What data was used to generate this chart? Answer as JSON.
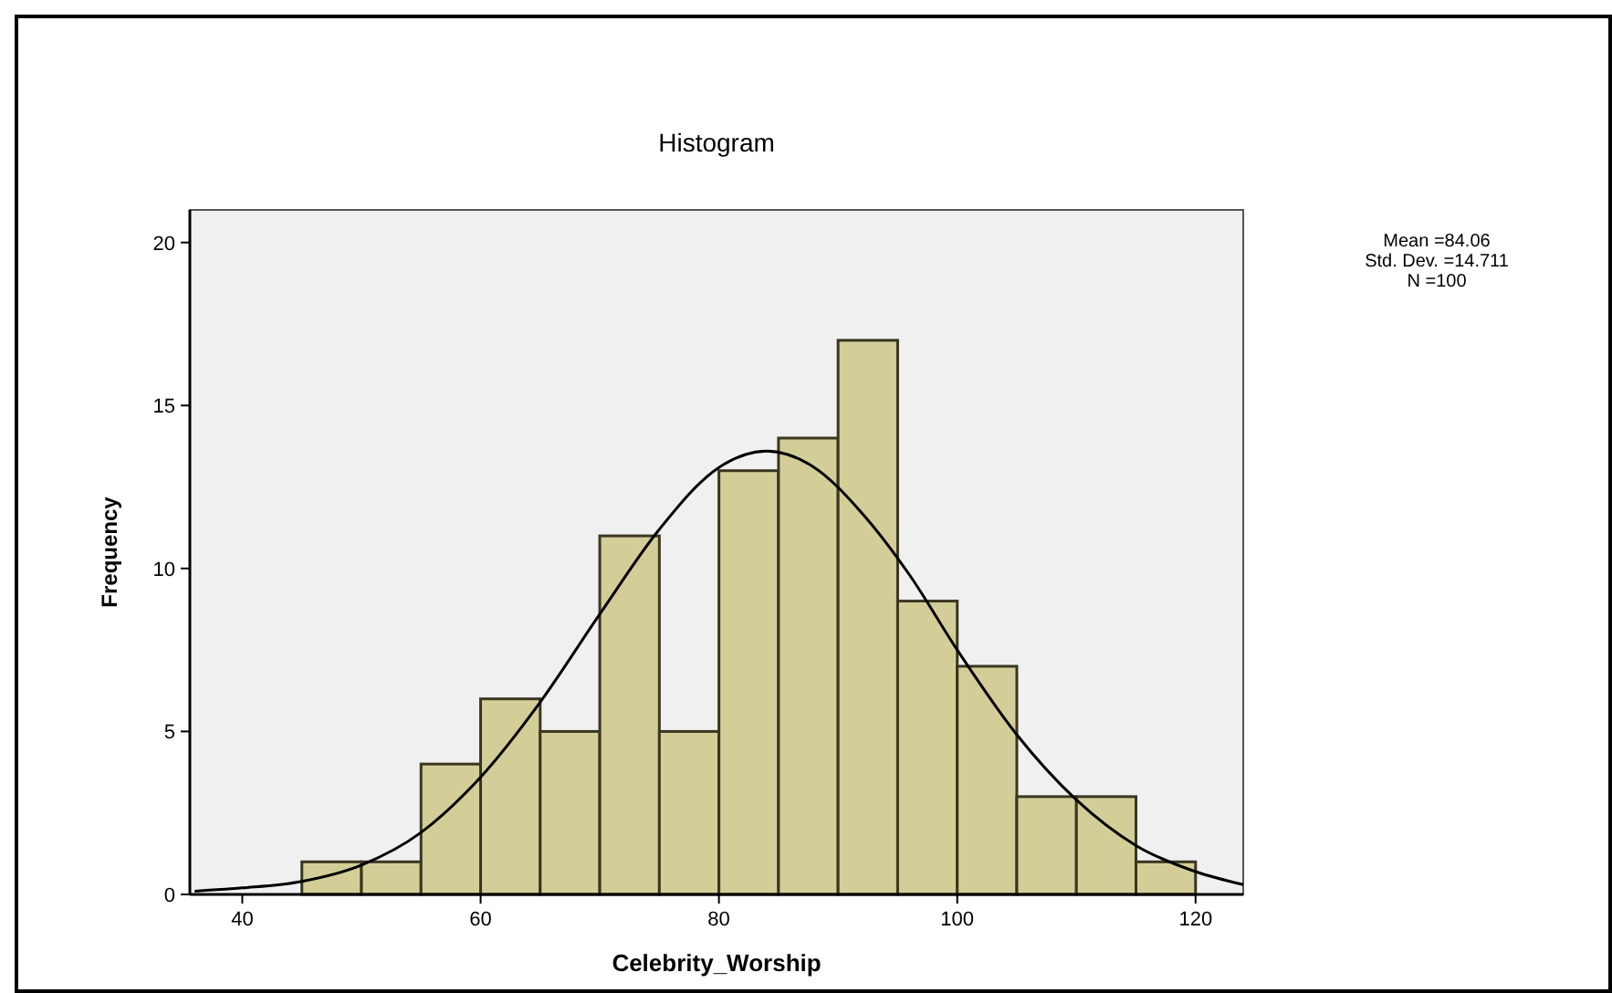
{
  "chart_data": {
    "type": "histogram",
    "title": "Histogram",
    "xlabel": "Celebrity_Worship",
    "ylabel": "Frequency",
    "bins": [
      45,
      50,
      55,
      60,
      65,
      70,
      75,
      80,
      85,
      90,
      95,
      100,
      105,
      110,
      115,
      120
    ],
    "values": [
      1,
      1,
      4,
      6,
      5,
      11,
      5,
      13,
      14,
      17,
      9,
      7,
      3,
      3,
      1
    ],
    "color": "#d3ce97",
    "series": [
      {
        "type": "line",
        "color": "#000000",
        "x": [
          36,
          40,
          45,
          50,
          55,
          60,
          65,
          70,
          75,
          80,
          84,
          88,
          92,
          96,
          100,
          105,
          110,
          115,
          120,
          124
        ],
        "values": [
          0.1,
          0.2,
          0.4,
          0.9,
          1.9,
          3.6,
          5.9,
          8.6,
          11.2,
          13.1,
          13.6,
          13.1,
          11.7,
          9.8,
          7.5,
          4.9,
          2.9,
          1.5,
          0.7,
          0.3
        ]
      }
    ],
    "xlim": [
      35.6,
      124
    ],
    "xticks": [
      40,
      60,
      80,
      100,
      120
    ],
    "ylim": [
      0,
      21
    ],
    "yticks": [
      0,
      5,
      10,
      15,
      20
    ],
    "grid": false,
    "annotations": [
      "Mean =84.06",
      "Std. Dev. =14.711",
      "N =100"
    ]
  }
}
